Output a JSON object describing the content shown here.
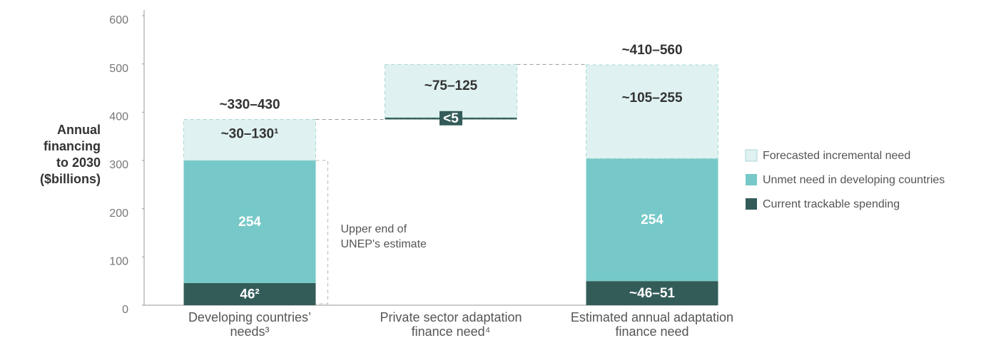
{
  "chart_data": {
    "type": "waterfall",
    "ylabel": [
      "Annual",
      "financing",
      "to 2030",
      "($billions)"
    ],
    "categories": [
      "Developing countries’ needs³",
      "Private sector adaptation finance need⁴",
      "Estimated annual adaptation finance need"
    ],
    "measures": [
      "absolute",
      "relative",
      "absolute"
    ],
    "series": [
      {
        "name": "Current trackable spending",
        "color": "#335c59",
        "values": [
          46,
          4,
          50
        ],
        "value_labels": [
          "46²",
          "<5",
          "~46–51"
        ]
      },
      {
        "name": "Unmet need in developing countries",
        "color": "#76c9c8",
        "values": [
          254,
          null,
          254
        ]
      },
      {
        "name": "Forecasted incremental need",
        "color": "#dff2f1",
        "values": [
          85,
          110,
          194
        ],
        "value_labels": [
          "~30–130¹",
          "~75–125",
          "~105–255"
        ]
      }
    ],
    "total_labels": [
      "~330–430",
      null,
      "~410–560"
    ],
    "annotation": [
      "Upper end of",
      "UNEP's estimate"
    ],
    "ylim": [
      0,
      600
    ],
    "yticks": [
      0,
      100,
      200,
      300,
      400,
      500,
      600
    ]
  }
}
